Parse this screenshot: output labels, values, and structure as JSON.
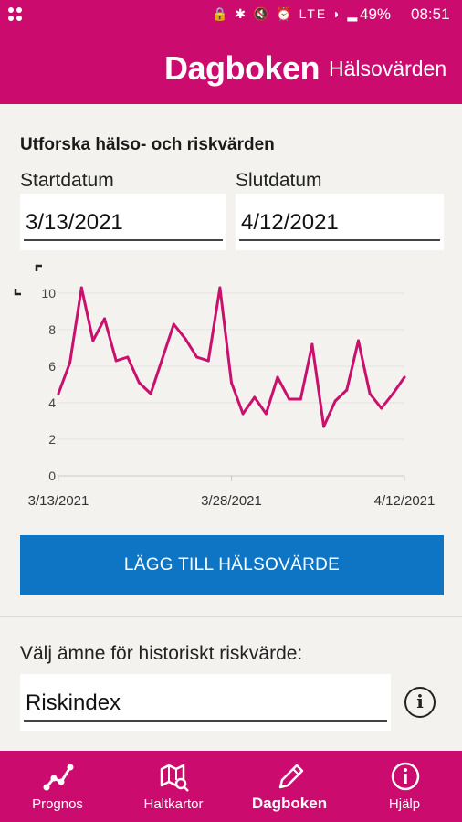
{
  "status_bar": {
    "left_icon": "app-grid-icon",
    "icons": "🔒 ✱ 🔇 ⏰ LTE ◗ ▂",
    "battery": "49%",
    "time": "08:51"
  },
  "app_bar": {
    "brand": "Dagboken",
    "subtitle": "Hälsovärden"
  },
  "section": {
    "title": "Utforska hälso- och riskvärden",
    "start_label": "Startdatum",
    "start_value": "3/13/2021",
    "end_label": "Slutdatum",
    "end_value": "4/12/2021"
  },
  "chart_data": {
    "type": "line",
    "x_tick_labels": [
      "3/13/2021",
      "3/28/2021",
      "4/12/2021"
    ],
    "y_ticks": [
      0,
      2,
      4,
      6,
      8,
      10
    ],
    "ylim": [
      0,
      10
    ],
    "color": "#c8106c",
    "series": [
      {
        "values": [
          4.5,
          6.2,
          10.3,
          7.4,
          8.6,
          6.3,
          6.5,
          5.1,
          4.5,
          6.4,
          8.3,
          7.5,
          6.5,
          6.3,
          10.3,
          5.1,
          3.4,
          4.3,
          3.4,
          5.4,
          4.2,
          4.2,
          7.2,
          2.7,
          4.1,
          4.7,
          7.4,
          4.5,
          3.7,
          4.5,
          5.4
        ]
      }
    ]
  },
  "add_button": {
    "label": "LÄGG TILL HÄLSOVÄRDE"
  },
  "risk": {
    "label": "Välj ämne för historiskt riskvärde:",
    "value": "Riskindex",
    "info_icon": "info-icon"
  },
  "bottom_nav": {
    "items": [
      {
        "label": "Prognos",
        "icon": "graph-icon"
      },
      {
        "label": "Haltkartor",
        "icon": "map-icon"
      },
      {
        "label": "Dagboken",
        "icon": "pencil-icon"
      },
      {
        "label": "Hjälp",
        "icon": "info-icon"
      }
    ]
  }
}
